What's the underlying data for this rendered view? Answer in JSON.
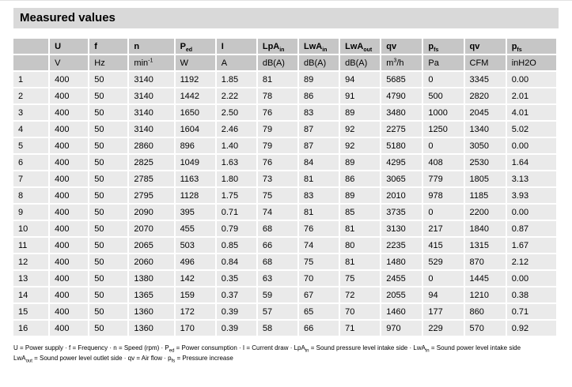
{
  "title": "Measured values",
  "colors": {
    "title_bar_bg": "#d9d9d9",
    "header_cell_bg": "#c6c6c6",
    "data_cell_bg": "#eaeaea",
    "grid_gap": "#ffffff",
    "text": "#000000"
  },
  "table": {
    "columns": [
      {
        "id": "index",
        "label": [],
        "unit": []
      },
      {
        "id": "u",
        "label": [
          {
            "t": "U"
          }
        ],
        "unit": [
          {
            "t": "V"
          }
        ]
      },
      {
        "id": "f",
        "label": [
          {
            "t": "f"
          }
        ],
        "unit": [
          {
            "t": "Hz"
          }
        ]
      },
      {
        "id": "n",
        "label": [
          {
            "t": "n"
          }
        ],
        "unit": [
          {
            "t": "min"
          },
          {
            "t": "-1",
            "s": "sup"
          }
        ]
      },
      {
        "id": "ped",
        "label": [
          {
            "t": "P"
          },
          {
            "t": "ed",
            "s": "sub"
          }
        ],
        "unit": [
          {
            "t": "W"
          }
        ]
      },
      {
        "id": "i",
        "label": [
          {
            "t": "I"
          }
        ],
        "unit": [
          {
            "t": "A"
          }
        ]
      },
      {
        "id": "lpa_in",
        "label": [
          {
            "t": "LpA"
          },
          {
            "t": "in",
            "s": "sub"
          }
        ],
        "unit": [
          {
            "t": "dB(A)"
          }
        ]
      },
      {
        "id": "lwa_in",
        "label": [
          {
            "t": "LwA"
          },
          {
            "t": "in",
            "s": "sub"
          }
        ],
        "unit": [
          {
            "t": "dB(A)"
          }
        ]
      },
      {
        "id": "lwa_out",
        "label": [
          {
            "t": "LwA"
          },
          {
            "t": "out",
            "s": "sub"
          }
        ],
        "unit": [
          {
            "t": "dB(A)"
          }
        ]
      },
      {
        "id": "qv_m3h",
        "label": [
          {
            "t": "qv"
          }
        ],
        "unit": [
          {
            "t": "m"
          },
          {
            "t": "3",
            "s": "sup"
          },
          {
            "t": "/h"
          }
        ]
      },
      {
        "id": "pfs_pa",
        "label": [
          {
            "t": "p"
          },
          {
            "t": "fs",
            "s": "sub"
          }
        ],
        "unit": [
          {
            "t": "Pa"
          }
        ]
      },
      {
        "id": "qv_cfm",
        "label": [
          {
            "t": "qv"
          }
        ],
        "unit": [
          {
            "t": "CFM"
          }
        ]
      },
      {
        "id": "pfs_inh2o",
        "label": [
          {
            "t": "p"
          },
          {
            "t": "fs",
            "s": "sub"
          }
        ],
        "unit": [
          {
            "t": "inH2O"
          }
        ]
      }
    ],
    "rows": [
      [
        "1",
        "400",
        "50",
        "3140",
        "1192",
        "1.85",
        "81",
        "89",
        "94",
        "5685",
        "0",
        "3345",
        "0.00"
      ],
      [
        "2",
        "400",
        "50",
        "3140",
        "1442",
        "2.22",
        "78",
        "86",
        "91",
        "4790",
        "500",
        "2820",
        "2.01"
      ],
      [
        "3",
        "400",
        "50",
        "3140",
        "1650",
        "2.50",
        "76",
        "83",
        "89",
        "3480",
        "1000",
        "2045",
        "4.01"
      ],
      [
        "4",
        "400",
        "50",
        "3140",
        "1604",
        "2.46",
        "79",
        "87",
        "92",
        "2275",
        "1250",
        "1340",
        "5.02"
      ],
      [
        "5",
        "400",
        "50",
        "2860",
        "896",
        "1.40",
        "79",
        "87",
        "92",
        "5180",
        "0",
        "3050",
        "0.00"
      ],
      [
        "6",
        "400",
        "50",
        "2825",
        "1049",
        "1.63",
        "76",
        "84",
        "89",
        "4295",
        "408",
        "2530",
        "1.64"
      ],
      [
        "7",
        "400",
        "50",
        "2785",
        "1163",
        "1.80",
        "73",
        "81",
        "86",
        "3065",
        "779",
        "1805",
        "3.13"
      ],
      [
        "8",
        "400",
        "50",
        "2795",
        "1128",
        "1.75",
        "75",
        "83",
        "89",
        "2010",
        "978",
        "1185",
        "3.93"
      ],
      [
        "9",
        "400",
        "50",
        "2090",
        "395",
        "0.71",
        "74",
        "81",
        "85",
        "3735",
        "0",
        "2200",
        "0.00"
      ],
      [
        "10",
        "400",
        "50",
        "2070",
        "455",
        "0.79",
        "68",
        "76",
        "81",
        "3130",
        "217",
        "1840",
        "0.87"
      ],
      [
        "11",
        "400",
        "50",
        "2065",
        "503",
        "0.85",
        "66",
        "74",
        "80",
        "2235",
        "415",
        "1315",
        "1.67"
      ],
      [
        "12",
        "400",
        "50",
        "2060",
        "496",
        "0.84",
        "68",
        "75",
        "81",
        "1480",
        "529",
        "870",
        "2.12"
      ],
      [
        "13",
        "400",
        "50",
        "1380",
        "142",
        "0.35",
        "63",
        "70",
        "75",
        "2455",
        "0",
        "1445",
        "0.00"
      ],
      [
        "14",
        "400",
        "50",
        "1365",
        "159",
        "0.37",
        "59",
        "67",
        "72",
        "2055",
        "94",
        "1210",
        "0.38"
      ],
      [
        "15",
        "400",
        "50",
        "1360",
        "172",
        "0.39",
        "57",
        "65",
        "70",
        "1460",
        "177",
        "860",
        "0.71"
      ],
      [
        "16",
        "400",
        "50",
        "1360",
        "170",
        "0.39",
        "58",
        "66",
        "71",
        "970",
        "229",
        "570",
        "0.92"
      ]
    ]
  },
  "footnote": {
    "lines": [
      [
        {
          "t": "U = Power supply · f = Frequency · n = Speed (rpm) · P"
        },
        {
          "t": "ed",
          "s": "sub"
        },
        {
          "t": " = Power consumption · I = Current draw · LpA"
        },
        {
          "t": "in",
          "s": "sub"
        },
        {
          "t": " = Sound pressure level intake side · LwA"
        },
        {
          "t": "in",
          "s": "sub"
        },
        {
          "t": " = Sound power level intake side"
        }
      ],
      [
        {
          "t": "LwA"
        },
        {
          "t": "out",
          "s": "sub"
        },
        {
          "t": " = Sound power level outlet side · qv = Air flow · p"
        },
        {
          "t": "fs",
          "s": "sub"
        },
        {
          "t": " = Pressure increase"
        }
      ]
    ]
  }
}
